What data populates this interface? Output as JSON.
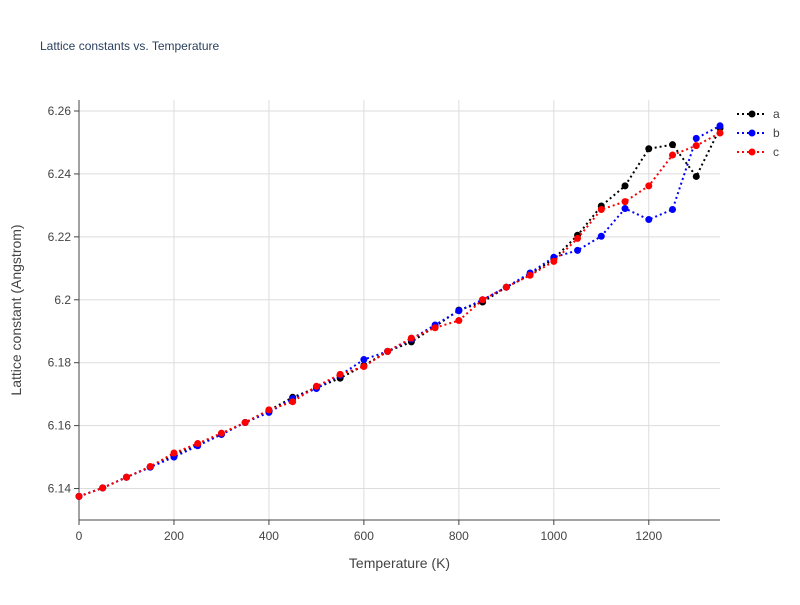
{
  "chart_data": {
    "type": "line",
    "title": "Lattice constants vs. Temperature",
    "xlabel": "Temperature (K)",
    "ylabel": "Lattice constant (Angstrom)",
    "xlim": [
      0,
      1350
    ],
    "ylim": [
      6.13,
      6.2635
    ],
    "xticks": [
      0,
      200,
      400,
      600,
      800,
      1000,
      1200
    ],
    "xtick_labels": [
      "0",
      "200",
      "400",
      "600",
      "800",
      "1000",
      "1200"
    ],
    "yticks": [
      6.14,
      6.16,
      6.18,
      6.2,
      6.22,
      6.24,
      6.26
    ],
    "ytick_labels": [
      "6.14",
      "6.16",
      "6.18",
      "6.2",
      "6.22",
      "6.24",
      "6.26"
    ],
    "grid": true,
    "legend_position": "top-right",
    "line_style": "dotted with markers",
    "x": [
      0,
      50,
      100,
      150,
      200,
      250,
      300,
      350,
      400,
      450,
      500,
      550,
      600,
      650,
      700,
      750,
      800,
      850,
      900,
      950,
      1000,
      1050,
      1100,
      1150,
      1200,
      1250,
      1300,
      1350
    ],
    "series": [
      {
        "name": "a",
        "color": "#000000",
        "values": [
          6.1375,
          6.1402,
          6.1436,
          6.1468,
          6.1508,
          6.154,
          6.1572,
          6.161,
          6.1648,
          6.169,
          6.172,
          6.1751,
          6.1791,
          6.1836,
          6.1866,
          6.1915,
          6.1967,
          6.1993,
          6.204,
          6.208,
          6.213,
          6.2205,
          6.2298,
          6.2362,
          6.248,
          6.2493,
          6.2392,
          6.2545
        ]
      },
      {
        "name": "b",
        "color": "#0000ff",
        "values": [
          6.1375,
          6.1402,
          6.1436,
          6.1468,
          6.15,
          6.1536,
          6.1572,
          6.161,
          6.1642,
          6.1686,
          6.1718,
          6.176,
          6.181,
          6.1836,
          6.1875,
          6.192,
          6.1965,
          6.2,
          6.204,
          6.2085,
          6.2135,
          6.2157,
          6.2202,
          6.229,
          6.2255,
          6.2287,
          6.2513,
          6.2553
        ]
      },
      {
        "name": "c",
        "color": "#ff0000",
        "values": [
          6.1375,
          6.1402,
          6.1436,
          6.147,
          6.1513,
          6.1543,
          6.1576,
          6.161,
          6.165,
          6.1676,
          6.1725,
          6.1763,
          6.1788,
          6.1836,
          6.1878,
          6.1911,
          6.1934,
          6.2,
          6.204,
          6.2078,
          6.2122,
          6.2195,
          6.2287,
          6.2312,
          6.2362,
          6.246,
          6.249,
          6.253
        ]
      }
    ]
  }
}
